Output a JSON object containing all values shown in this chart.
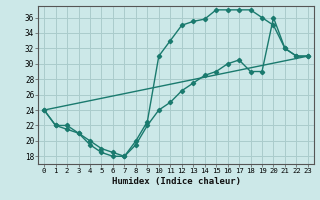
{
  "xlabel": "Humidex (Indice chaleur)",
  "background_color": "#cce8e8",
  "grid_color": "#aacccc",
  "line_color": "#1a7a6e",
  "marker": "D",
  "markersize": 2.2,
  "linewidth": 1.0,
  "xlim": [
    -0.5,
    23.5
  ],
  "ylim": [
    17,
    37.5
  ],
  "yticks": [
    18,
    20,
    22,
    24,
    26,
    28,
    30,
    32,
    34,
    36
  ],
  "xticks": [
    0,
    1,
    2,
    3,
    4,
    5,
    6,
    7,
    8,
    9,
    10,
    11,
    12,
    13,
    14,
    15,
    16,
    17,
    18,
    19,
    20,
    21,
    22,
    23
  ],
  "series1_x": [
    0,
    1,
    2,
    3,
    4,
    5,
    6,
    7,
    8,
    9,
    10,
    11,
    12,
    13,
    14,
    15,
    16,
    17,
    18,
    19,
    20,
    21,
    22,
    23
  ],
  "series1_y": [
    24,
    22,
    21.5,
    21,
    19.5,
    18.5,
    18,
    18,
    20,
    22.5,
    31,
    33,
    35,
    35.5,
    35.8,
    37,
    37,
    37,
    37,
    36,
    35,
    32,
    31,
    31
  ],
  "series2_x": [
    0,
    1,
    2,
    3,
    4,
    5,
    6,
    7,
    8,
    9,
    10,
    11,
    12,
    13,
    14,
    15,
    16,
    17,
    18,
    19,
    20,
    21,
    22,
    23
  ],
  "series2_y": [
    24,
    22,
    22,
    21,
    20,
    19,
    18.5,
    18,
    19.5,
    22,
    24,
    25,
    26.5,
    27.5,
    28.5,
    29,
    30,
    30.5,
    29,
    29,
    36,
    32,
    31,
    31
  ],
  "series3_x": [
    0,
    23
  ],
  "series3_y": [
    24,
    31
  ]
}
